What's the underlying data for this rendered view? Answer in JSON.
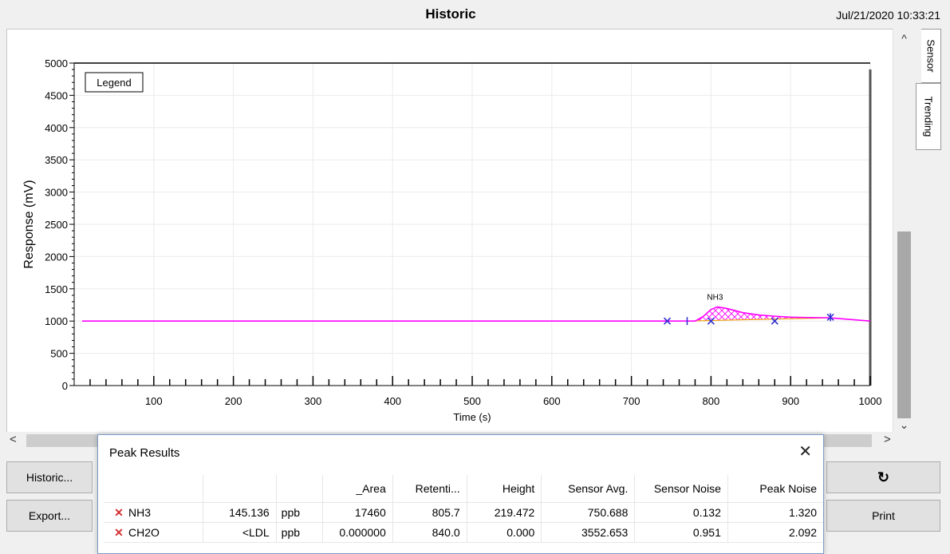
{
  "window": {
    "title": "Historic",
    "datetime": "Jul/21/2020 10:33:21"
  },
  "tabs": [
    {
      "label": "Sensor"
    },
    {
      "label": "Trending"
    }
  ],
  "legend_button": "Legend",
  "scrollbar": {
    "up": "^",
    "down": "⌄",
    "left": "<",
    "right": ">"
  },
  "buttons": {
    "historic": "Historic...",
    "export": "Export...",
    "refresh_icon": "↻",
    "print": "Print"
  },
  "chart_data": {
    "type": "line",
    "title": "",
    "xlabel": "Time (s)",
    "ylabel": "Response (mV)",
    "xlim": [
      0,
      1000
    ],
    "ylim": [
      0,
      5000
    ],
    "x_ticks": [
      100,
      200,
      300,
      400,
      500,
      600,
      700,
      800,
      900,
      1000
    ],
    "y_ticks": [
      0,
      500,
      1000,
      1500,
      2000,
      2500,
      3000,
      3500,
      4000,
      4500,
      5000
    ],
    "grid": true,
    "legend_position": "top-left",
    "series": [
      {
        "color": "#ff00ff",
        "x": [
          10,
          100,
          200,
          300,
          400,
          500,
          600,
          700,
          740,
          770,
          780,
          790,
          800,
          808,
          820,
          840,
          860,
          880,
          900,
          920,
          940,
          950,
          1000
        ],
        "y": [
          1000,
          1000,
          1000,
          1000,
          1000,
          1000,
          1000,
          1000,
          1000,
          1000,
          1000,
          1070,
          1180,
          1220,
          1195,
          1130,
          1095,
          1075,
          1060,
          1055,
          1052,
          1050,
          1000
        ]
      }
    ],
    "peak_label": {
      "text": "NH3",
      "x": 805,
      "y": 1330
    },
    "markers": [
      {
        "x": 745,
        "y": 1000,
        "type": "x"
      },
      {
        "x": 770,
        "y": 1000,
        "type": "tick"
      },
      {
        "x": 800,
        "y": 1000,
        "type": "x"
      },
      {
        "x": 880,
        "y": 1000,
        "type": "x"
      },
      {
        "x": 950,
        "y": 1060,
        "type": "star"
      }
    ],
    "baseline_peak": {
      "x": [
        770,
        950
      ],
      "y": [
        1000,
        1050
      ],
      "color": "#f0a000"
    }
  },
  "peak_results": {
    "title": "Peak Results",
    "close_icon": "✕",
    "columns": [
      "",
      "",
      "",
      "_Area",
      "Retenti...",
      "Height",
      "Sensor Avg.",
      "Sensor Noise",
      "Peak Noise"
    ],
    "rows": [
      {
        "marker": "x-icon",
        "name": "NH3",
        "conc": "145.136",
        "unit": "ppb",
        "area": "17460",
        "retention": "805.7",
        "height": "219.472",
        "sensor_avg": "750.688",
        "sensor_noise": "0.132",
        "peak_noise": "1.320"
      },
      {
        "marker": "x-icon",
        "name": "CH2O",
        "conc": "<LDL",
        "unit": "ppb",
        "area": "0.000000",
        "retention": "840.0",
        "height": "0.000",
        "sensor_avg": "3552.653",
        "sensor_noise": "0.951",
        "peak_noise": "2.092"
      }
    ]
  }
}
